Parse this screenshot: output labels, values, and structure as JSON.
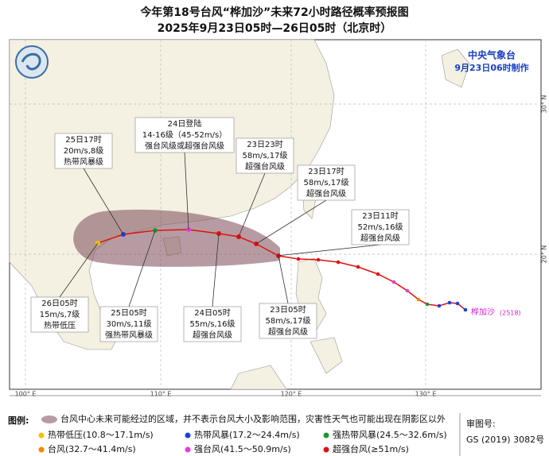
{
  "header": {
    "title": "今年第18号台风“桦加沙”未来72小时路径概率预报图",
    "subtitle": "2025年9月23日05时—26日05时（北京时）"
  },
  "agency": {
    "name": "中央气象台",
    "made": "9月23日06时制作"
  },
  "typhoon": {
    "name": "桦加沙",
    "code": "(2518)"
  },
  "axis": {
    "lon": [
      "100° E",
      "110° E",
      "120° E",
      "130° E"
    ],
    "lat": [
      "30° N",
      "20° N"
    ]
  },
  "callouts": [
    {
      "lines": [
        "25日17时",
        "20m/s,8级",
        "热带风暴级"
      ]
    },
    {
      "lines": [
        "24日登陆",
        "14-16级（45-52m/s）",
        "强台风级或超强台风级"
      ]
    },
    {
      "lines": [
        "23日23时",
        "58m/s,17级",
        "超强台风级"
      ]
    },
    {
      "lines": [
        "23日17时",
        "58m/s,17级",
        "超强台风级"
      ]
    },
    {
      "lines": [
        "23日11时",
        "52m/s,16级",
        "超强台风级"
      ]
    },
    {
      "lines": [
        "26日05时",
        "15m/s,7级",
        "热带低压"
      ]
    },
    {
      "lines": [
        "25日05时",
        "30m/s,11级",
        "强热带风暴级"
      ]
    },
    {
      "lines": [
        "24日05时",
        "55m/s,16级",
        "超强台风级"
      ]
    },
    {
      "lines": [
        "23日05时",
        "58m/s,17级",
        "超强台风级"
      ]
    }
  ],
  "legend": {
    "title": "图例:",
    "cone": "台风中心未来可能经过的区域，并不表示台风大小及影响范围，灾害性天气也可能出现在阴影区以外",
    "items": [
      {
        "label": "热带低压(10.8～17.1m/s)",
        "color": "#f2c200"
      },
      {
        "label": "热带风暴(17.2～24.4m/s)",
        "color": "#1f3fd6"
      },
      {
        "label": "强热带风暴(24.5～32.6m/s)",
        "color": "#1a9a2a"
      },
      {
        "label": "台风(32.7～41.4m/s)",
        "color": "#f08a00"
      },
      {
        "label": "强台风(41.5～50.9m/s)",
        "color": "#e23de0"
      },
      {
        "label": "超强台风(≥51m/s)",
        "color": "#e01010"
      }
    ]
  },
  "footer": {
    "review": "审图号:",
    "code": "GS (2019) 3082号"
  }
}
